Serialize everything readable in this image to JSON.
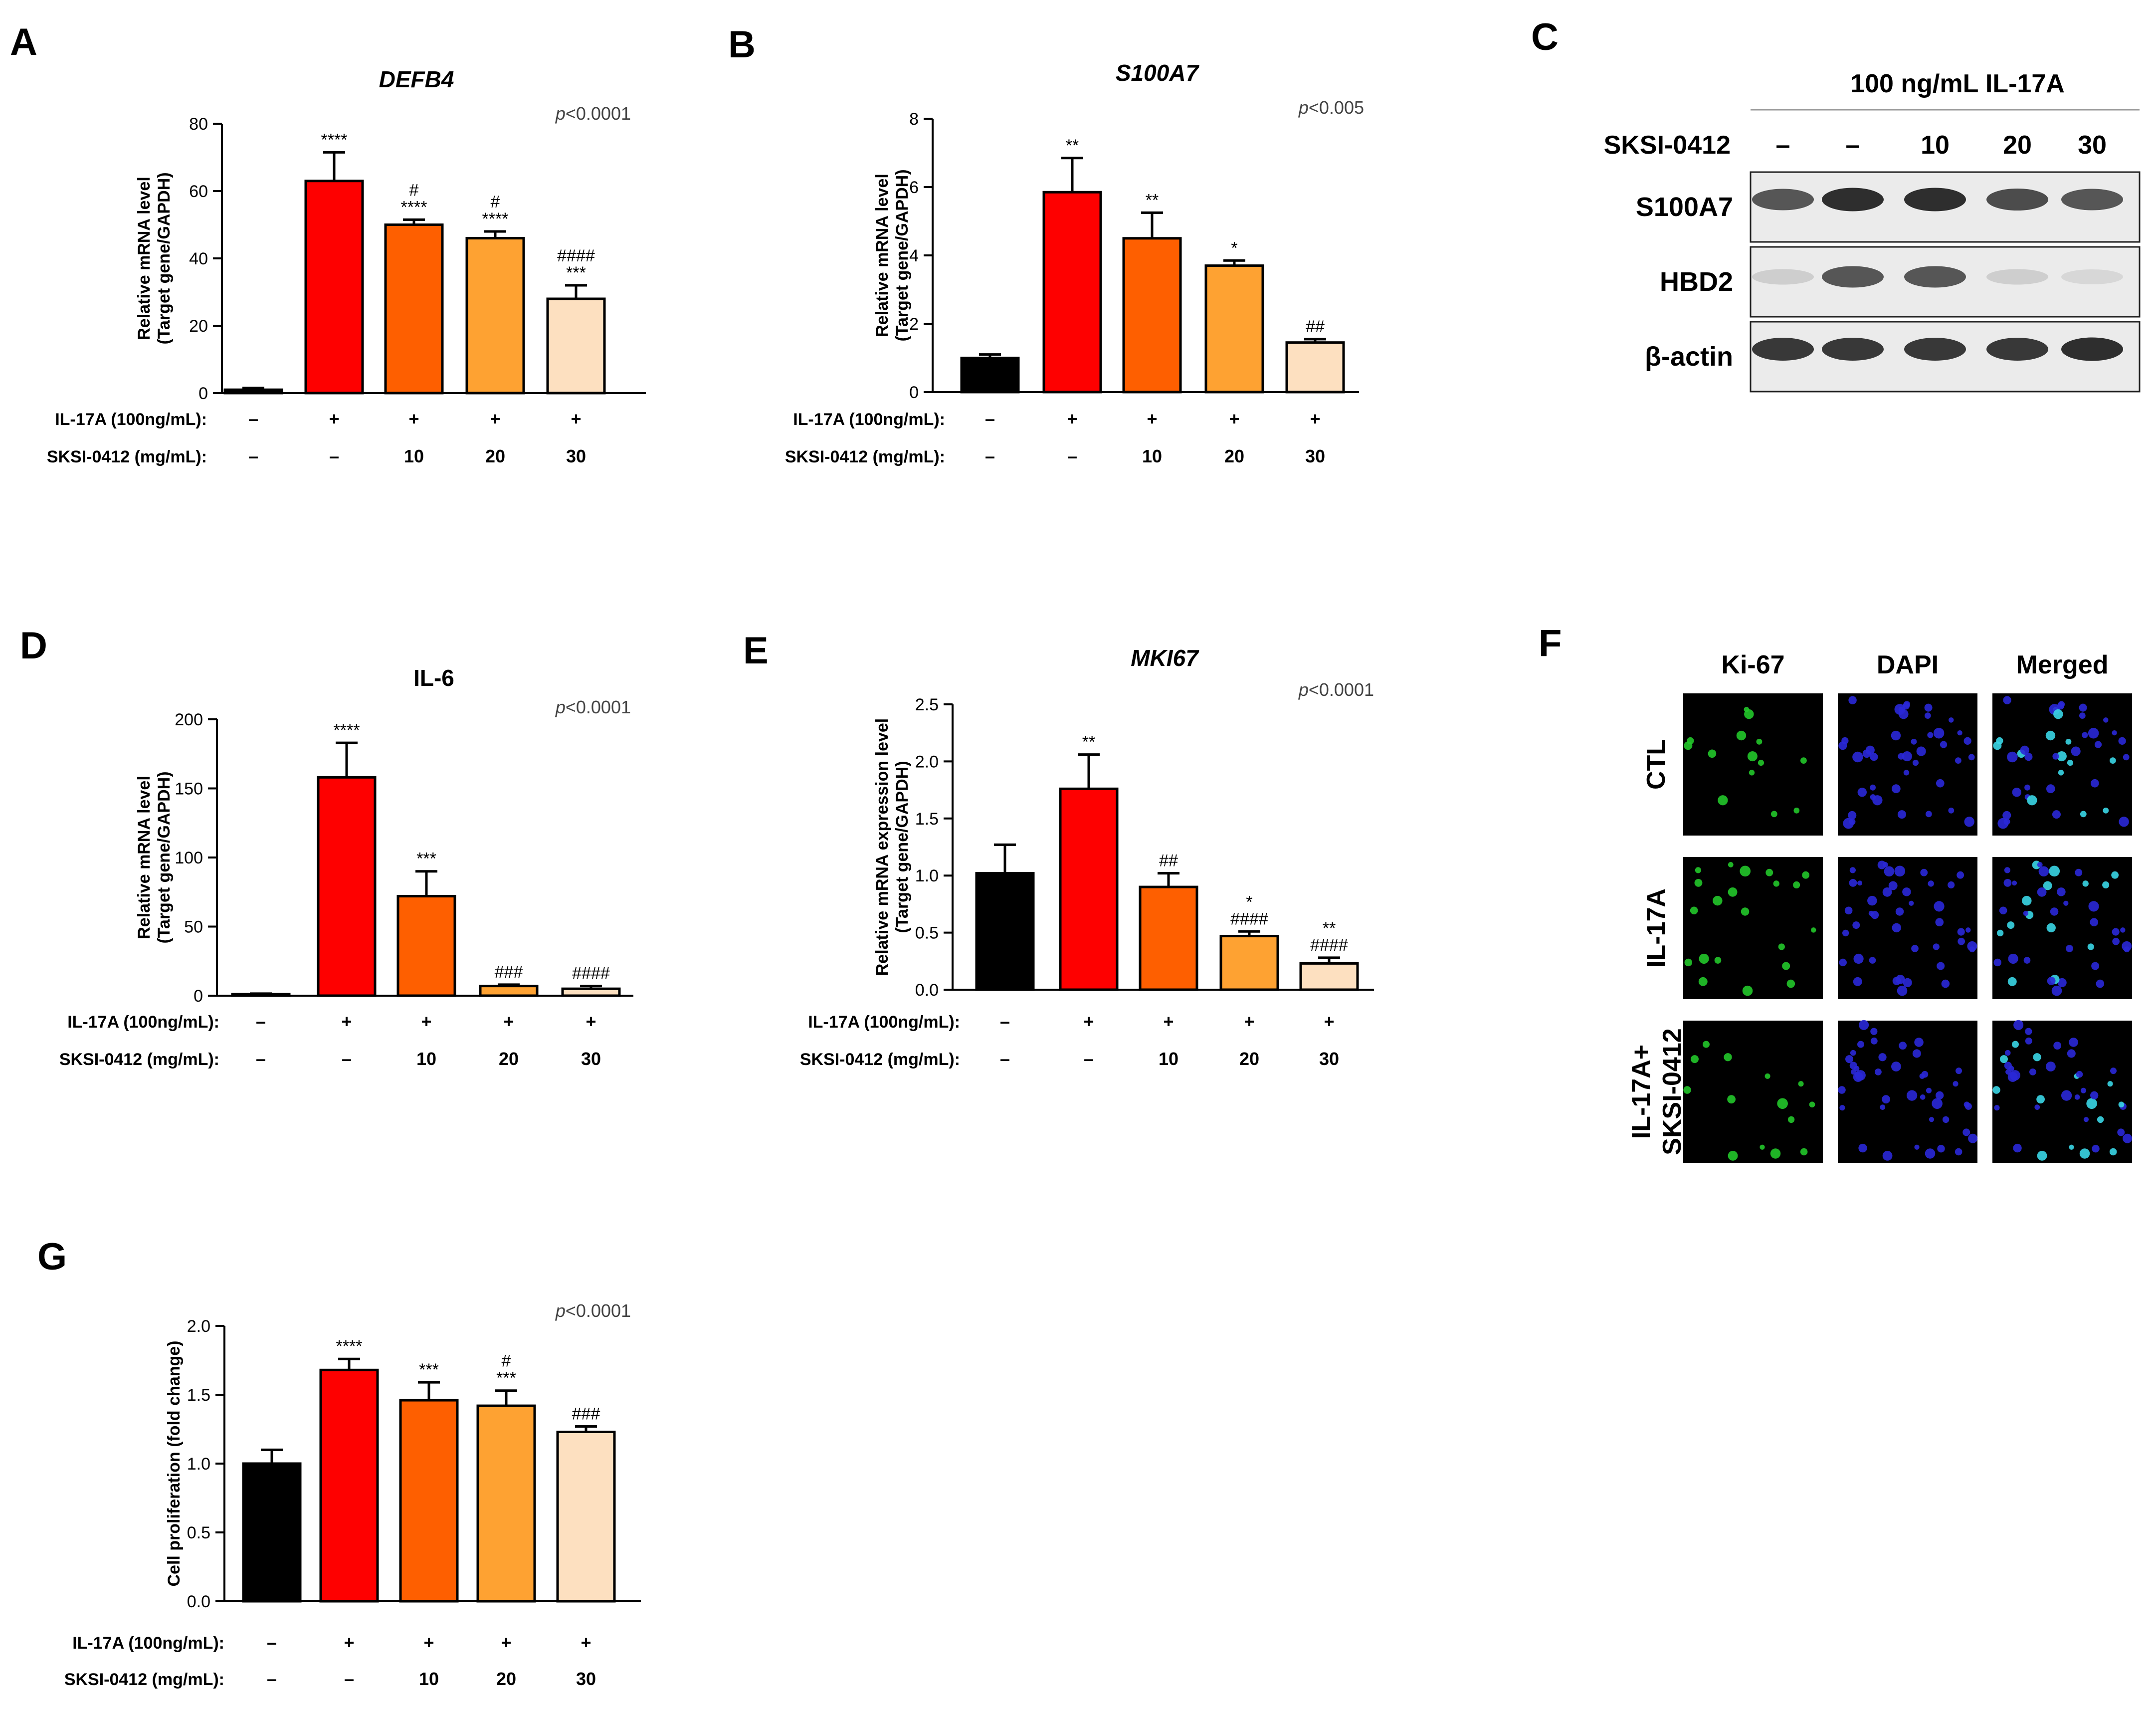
{
  "colors": {
    "black": "#000000",
    "red": "#fe0000",
    "orange": "#fe5f00",
    "lightorange": "#fea232",
    "peach": "#fde0c0",
    "ki67_green": "#22c62a",
    "dapi_blue": "#2a28d8",
    "merged_cyan": "#3ad6e6"
  },
  "treatment_labels": {
    "il17a_label": "IL-17A (100ng/mL):",
    "sksi_label": "SKSI-0412 (mg/mL):",
    "il17a_values": [
      "–",
      "+",
      "+",
      "+",
      "+"
    ],
    "sksi_values": [
      "–",
      "–",
      "10",
      "20",
      "30"
    ]
  },
  "chart_data": [
    {
      "panel": "A",
      "type": "bar",
      "title": "DEFB4",
      "title_italic": true,
      "pvalue": "p<0.0001",
      "ylabel_line1": "Relative mRNA level",
      "ylabel_line2": "(Target gene/GAPDH)",
      "ylim": [
        0,
        80
      ],
      "yticks": [
        0,
        20,
        40,
        60,
        80
      ],
      "values": [
        1,
        63,
        50,
        46,
        28
      ],
      "errors": [
        0.5,
        8.5,
        1.5,
        2,
        4
      ],
      "annotations": [
        [],
        [
          "****"
        ],
        [
          "#",
          "****"
        ],
        [
          "#",
          "****"
        ],
        [
          "####",
          "***"
        ]
      ]
    },
    {
      "panel": "B",
      "type": "bar",
      "title": "S100A7",
      "title_italic": true,
      "pvalue": "p<0.005",
      "ylabel_line1": "Relative mRNA level",
      "ylabel_line2": "(Target gene/GAPDH)",
      "ylim": [
        0,
        8
      ],
      "yticks": [
        0,
        2,
        4,
        6,
        8
      ],
      "values": [
        1,
        5.85,
        4.5,
        3.7,
        1.45
      ],
      "errors": [
        0.1,
        1.0,
        0.75,
        0.15,
        0.1
      ],
      "annotations": [
        [],
        [
          "**"
        ],
        [
          "**"
        ],
        [
          "*"
        ],
        [
          "##"
        ]
      ]
    },
    {
      "panel": "D",
      "type": "bar",
      "title": "IL-6",
      "title_italic": false,
      "pvalue": "p<0.0001",
      "ylabel_line1": "Relative mRNA level",
      "ylabel_line2": "(Target gene/GAPDH)",
      "ylim": [
        0,
        200
      ],
      "yticks": [
        0,
        50,
        100,
        150,
        200
      ],
      "values": [
        1,
        158,
        72,
        7,
        5
      ],
      "errors": [
        0.5,
        25,
        18,
        1,
        2
      ],
      "annotations": [
        [],
        [
          "****"
        ],
        [
          "***"
        ],
        [
          "###"
        ],
        [
          "####"
        ]
      ]
    },
    {
      "panel": "E",
      "type": "bar",
      "title": "MKI67",
      "title_italic": true,
      "pvalue": "p<0.0001",
      "ylabel_line1": "Relative mRNA expression level",
      "ylabel_line2": "(Target gene/GAPDH)",
      "ylim": [
        0,
        2.5
      ],
      "yticks": [
        0.0,
        0.5,
        1.0,
        1.5,
        2.0,
        2.5
      ],
      "ytick_labels": [
        "0.0",
        "0.5",
        "1.0",
        "1.5",
        "2.0",
        "2.5"
      ],
      "values": [
        1.02,
        1.76,
        0.9,
        0.47,
        0.23
      ],
      "errors": [
        0.25,
        0.3,
        0.12,
        0.04,
        0.05
      ],
      "annotations": [
        [],
        [
          "**"
        ],
        [
          "##"
        ],
        [
          "*",
          "####"
        ],
        [
          "**",
          "####"
        ]
      ]
    },
    {
      "panel": "G",
      "type": "bar",
      "title": "",
      "title_italic": false,
      "pvalue": "p<0.0001",
      "ylabel_line1": "Cell proliferation (fold change)",
      "ylabel_line2": "",
      "ylim": [
        0,
        2.0
      ],
      "yticks": [
        0.0,
        0.5,
        1.0,
        1.5,
        2.0
      ],
      "ytick_labels": [
        "0.0",
        "0.5",
        "1.0",
        "1.5",
        "2.0"
      ],
      "values": [
        1.0,
        1.68,
        1.46,
        1.42,
        1.23
      ],
      "errors": [
        0.1,
        0.08,
        0.13,
        0.11,
        0.04
      ],
      "annotations": [
        [],
        [
          "****"
        ],
        [
          "***"
        ],
        [
          "#",
          "***"
        ],
        [
          "###"
        ]
      ]
    }
  ],
  "panel_letters": [
    "A",
    "B",
    "C",
    "D",
    "E",
    "F",
    "G"
  ],
  "western_blot": {
    "panel": "C",
    "header": "100 ng/mL IL-17A",
    "row_label": "SKSI-0412",
    "lanes": [
      "–",
      "–",
      "10",
      "20",
      "30"
    ],
    "bands": [
      {
        "name": "S100A7",
        "intensities": [
          0.75,
          0.95,
          0.95,
          0.8,
          0.75
        ]
      },
      {
        "name": "HBD2",
        "intensities": [
          0.15,
          0.75,
          0.75,
          0.15,
          0.1
        ]
      },
      {
        "name": "β-actin",
        "intensities": [
          0.9,
          0.9,
          0.9,
          0.9,
          0.95
        ]
      }
    ]
  },
  "immunofluorescence": {
    "panel": "F",
    "columns": [
      "Ki-67",
      "DAPI",
      "Merged"
    ],
    "rows": [
      {
        "label_lines": [
          "CTL"
        ]
      },
      {
        "label_lines": [
          "IL-17A"
        ]
      },
      {
        "label_lines": [
          "IL-17A+",
          "SKSI-0412"
        ]
      }
    ]
  }
}
